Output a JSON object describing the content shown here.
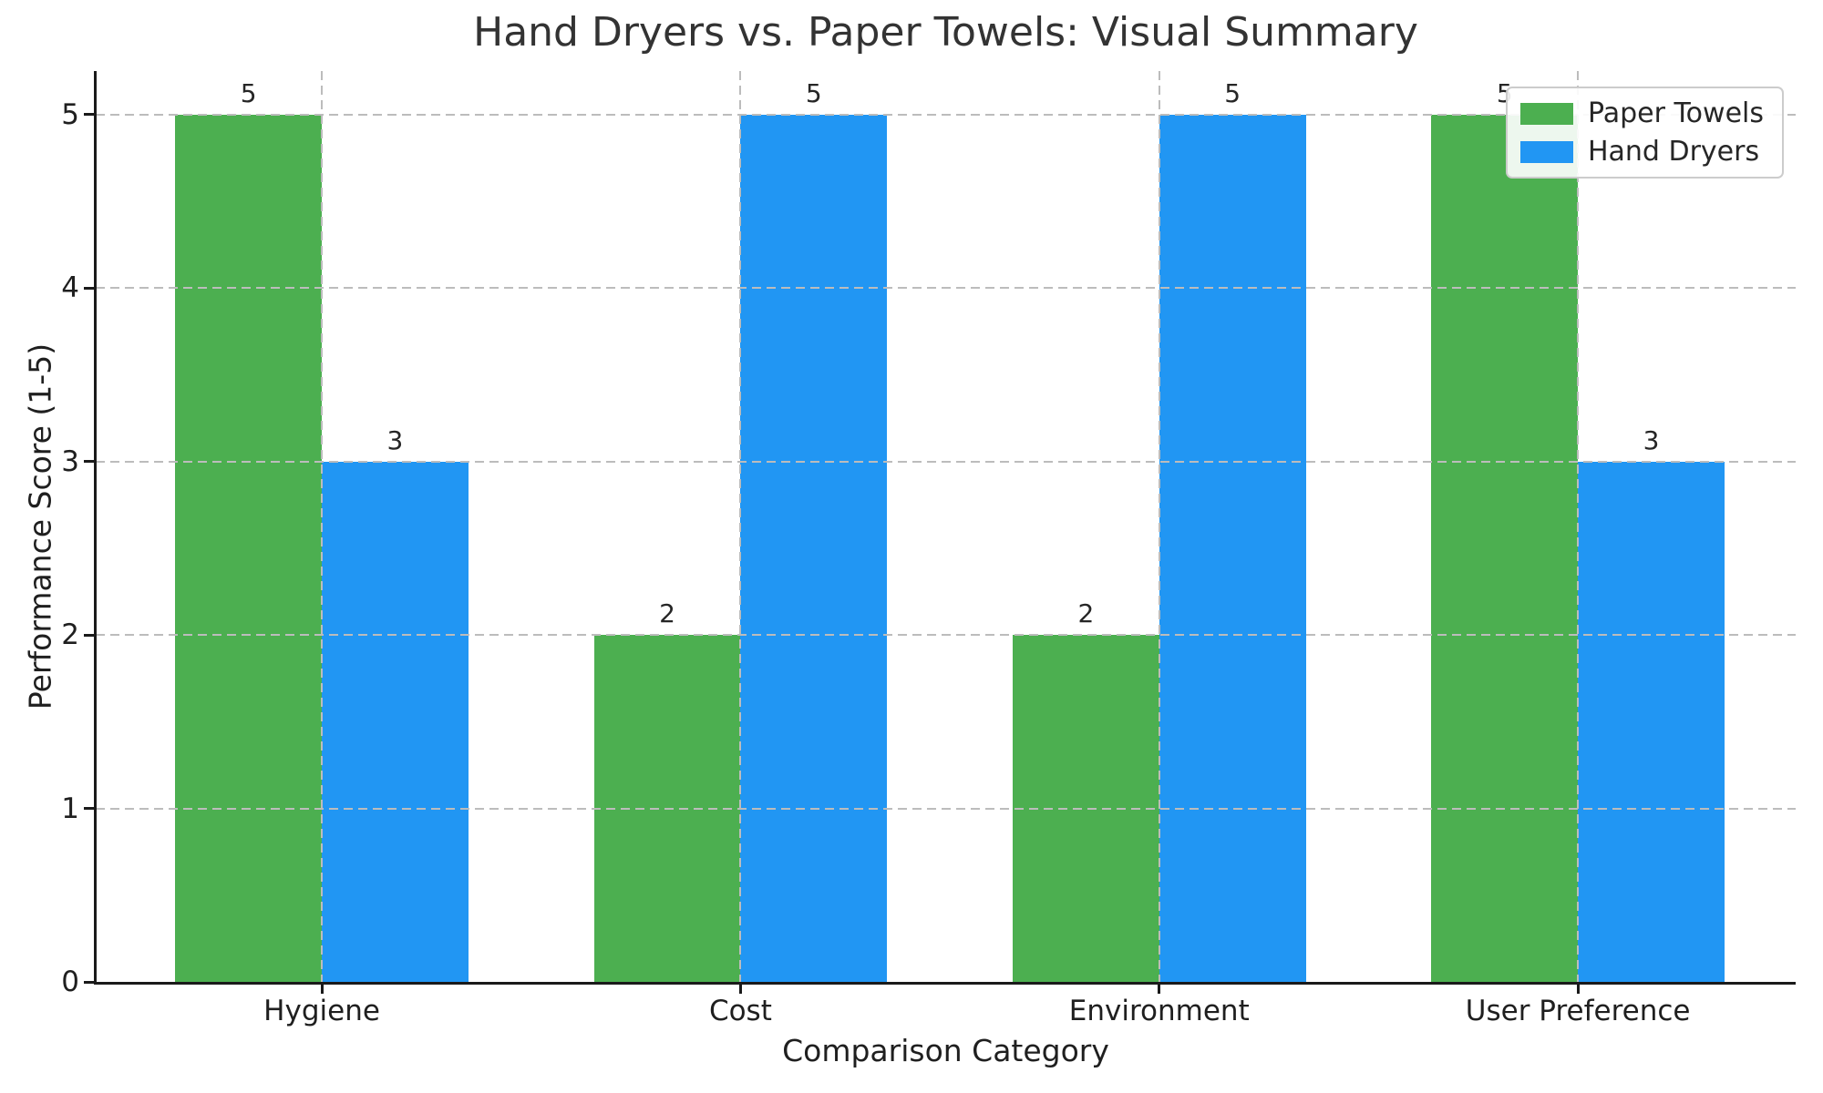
{
  "chart_data": {
    "type": "bar",
    "title": "Hand Dryers vs. Paper Towels: Visual Summary",
    "xlabel": "Comparison Category",
    "ylabel": "Performance Score (1-5)",
    "categories": [
      "Hygiene",
      "Cost",
      "Environment",
      "User Preference"
    ],
    "series": [
      {
        "name": "Paper Towels",
        "color": "#4caf50",
        "values": [
          5,
          2,
          2,
          5
        ]
      },
      {
        "name": "Hand Dryers",
        "color": "#2196f3",
        "values": [
          3,
          5,
          5,
          3
        ]
      }
    ],
    "value_labels": {
      "paper_towels": [
        "5",
        "2",
        "2",
        "5"
      ],
      "hand_dryers": [
        "3",
        "5",
        "5",
        "3"
      ]
    },
    "yticks": [
      "0",
      "1",
      "2",
      "3",
      "4",
      "5"
    ],
    "ylim": [
      0,
      5.25
    ],
    "xlim": [
      -0.54,
      3.52
    ],
    "bar_width": 0.35,
    "grid": "dashed, both axes, drawn over bars",
    "legend_position": "upper right",
    "colors": {
      "paper_towels": "#4caf50",
      "hand_dryers": "#2196f3",
      "gridline": "#bcbcbc",
      "spine": "#1a1a1a",
      "text": "#1f1f1f",
      "legend_border": "#cccccc"
    }
  }
}
